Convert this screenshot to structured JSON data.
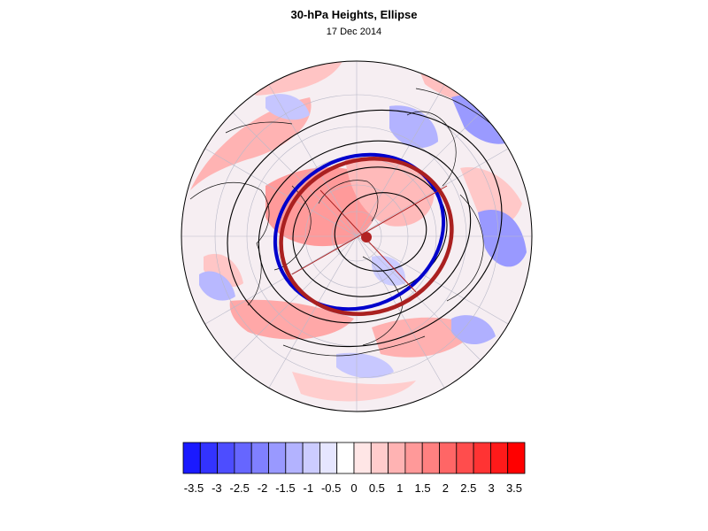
{
  "map": {
    "title": "30-hPa Heights, Ellipse",
    "date": "17 Dec 2014",
    "colors": {
      "ellipse_blue": "#0000cc",
      "ellipse_red": "#aa2020",
      "centroid": "#b22222"
    }
  },
  "colorbar": {
    "labels": [
      "-3.5",
      "-3",
      "-2.5",
      "-2",
      "-1.5",
      "-1",
      "-0.5",
      "0",
      "0.5",
      "1",
      "1.5",
      "2",
      "2.5",
      "3",
      "3.5"
    ],
    "colors": [
      "#1a1aff",
      "#3333ff",
      "#4d4dff",
      "#6666ff",
      "#8080ff",
      "#9999ff",
      "#b3b3ff",
      "#ccccff",
      "#e6e6ff",
      "#ffffff",
      "#ffe6e6",
      "#ffcccc",
      "#ffb3b3",
      "#ff9999",
      "#ff8080",
      "#ff6666",
      "#ff4d4d",
      "#ff3333",
      "#ff1a1a",
      "#ff0000"
    ]
  }
}
